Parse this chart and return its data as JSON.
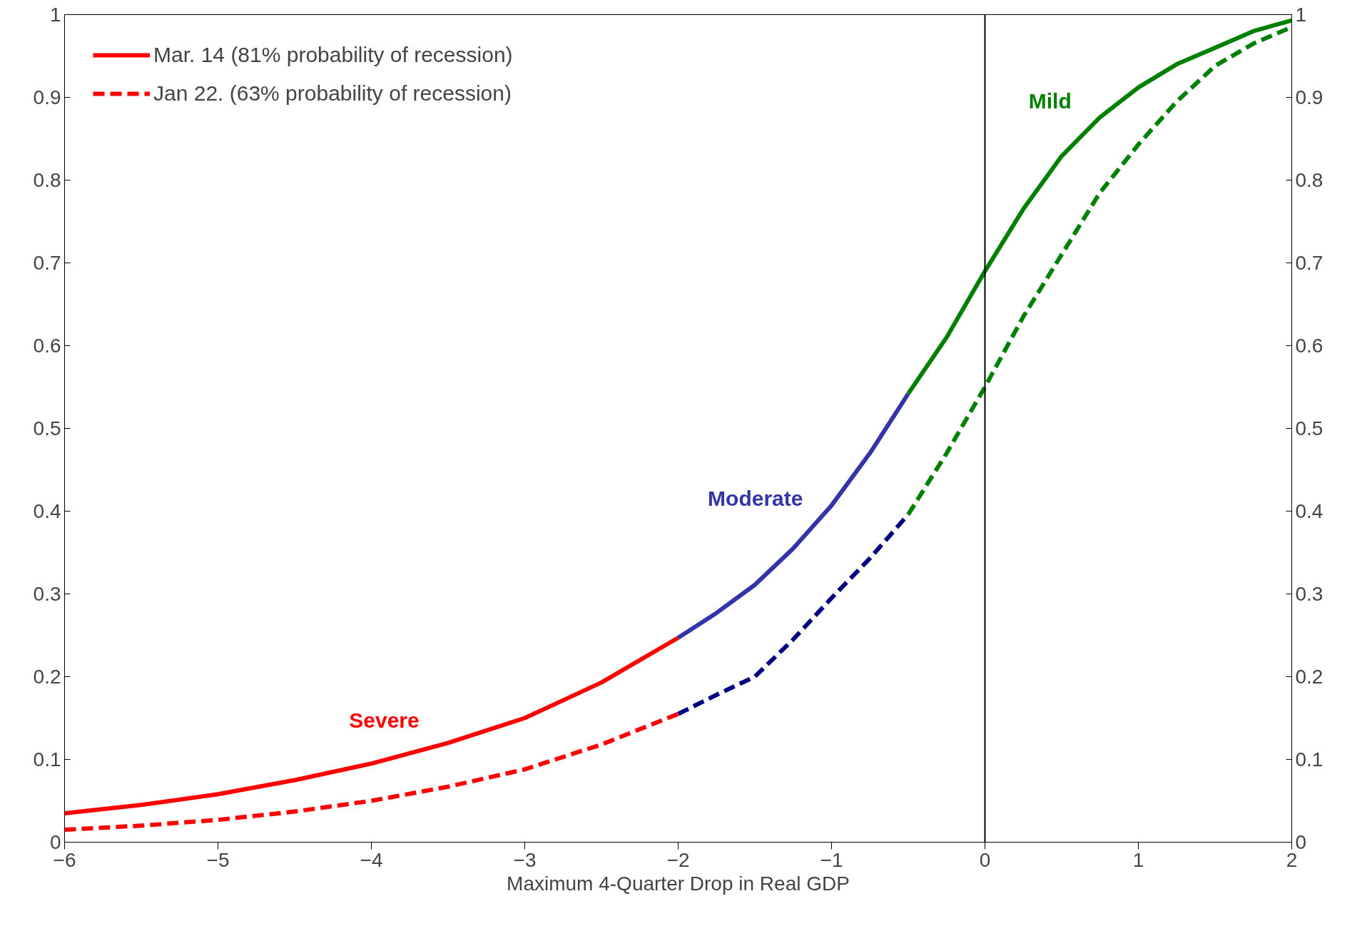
{
  "chart_data": {
    "type": "line",
    "xlabel": "Maximum 4-Quarter Drop in Real GDP",
    "xlim": [
      -6,
      2
    ],
    "xticks": [
      -6,
      -5,
      -4,
      -3,
      -2,
      -1,
      0,
      1,
      2
    ],
    "ylim": [
      0,
      1
    ],
    "yticks": [
      0,
      0.1,
      0.2,
      0.3,
      0.4,
      0.5,
      0.6,
      0.7,
      0.8,
      0.9,
      1
    ],
    "y2lim": [
      0,
      1
    ],
    "y2ticks": [
      0,
      0.1,
      0.2,
      0.3,
      0.4,
      0.5,
      0.6,
      0.7,
      0.8,
      0.9,
      1
    ],
    "grid": false,
    "legend": "top left",
    "marker": "none",
    "series": [
      {
        "name": "Mar. 14 (81% probability of recession)",
        "color": "#ff0000",
        "line_style": "solid",
        "x": [
          -6,
          -5.5,
          -5,
          -4.5,
          -4,
          -3.5,
          -3,
          -2.5,
          -2
        ],
        "values": [
          0.035,
          0.045,
          0.058,
          0.075,
          0.095,
          0.12,
          0.15,
          0.193,
          0.247
        ]
      },
      {
        "color": "#3333aa",
        "line_style": "solid",
        "x": [
          -2,
          -1.75,
          -1.5,
          -1.25,
          -1,
          -0.75,
          -0.5
        ],
        "values": [
          0.247,
          0.277,
          0.311,
          0.355,
          0.407,
          0.47,
          0.542
        ]
      },
      {
        "color": "#008000",
        "line_style": "solid",
        "x": [
          -0.5,
          -0.25,
          0,
          0.25,
          0.5,
          0.75,
          1,
          1.25,
          1.5,
          1.75,
          2
        ],
        "values": [
          0.542,
          0.61,
          0.69,
          0.765,
          0.829,
          0.876,
          0.912,
          0.94,
          0.96,
          0.98,
          0.993
        ]
      },
      {
        "name": "Jan 22. (63% probability of recession)",
        "color": "#ff0000",
        "line_style": "dashed",
        "x": [
          -6,
          -5.5,
          -5,
          -4.5,
          -4,
          -3.5,
          -3,
          -2.5,
          -2
        ],
        "values": [
          0.015,
          0.02,
          0.027,
          0.037,
          0.05,
          0.067,
          0.088,
          0.118,
          0.155
        ]
      },
      {
        "color": "#000080",
        "line_style": "dashed",
        "x": [
          -2,
          -1.75,
          -1.5,
          -1.25,
          -1,
          -0.75,
          -0.5
        ],
        "values": [
          0.155,
          0.178,
          0.2,
          0.245,
          0.295,
          0.343,
          0.396
        ]
      },
      {
        "color": "#008000",
        "line_style": "dashed",
        "x": [
          -0.5,
          -0.25,
          0,
          0.25,
          0.5,
          0.75,
          1,
          1.25,
          1.5,
          1.75,
          2
        ],
        "values": [
          0.396,
          0.47,
          0.55,
          0.635,
          0.71,
          0.785,
          0.843,
          0.895,
          0.938,
          0.965,
          0.985
        ]
      }
    ],
    "ref_lines": [
      {
        "axis": "x",
        "value": 0,
        "color": "#000000"
      }
    ],
    "annotations": [
      "Severe",
      "Moderate",
      "Mild"
    ]
  }
}
